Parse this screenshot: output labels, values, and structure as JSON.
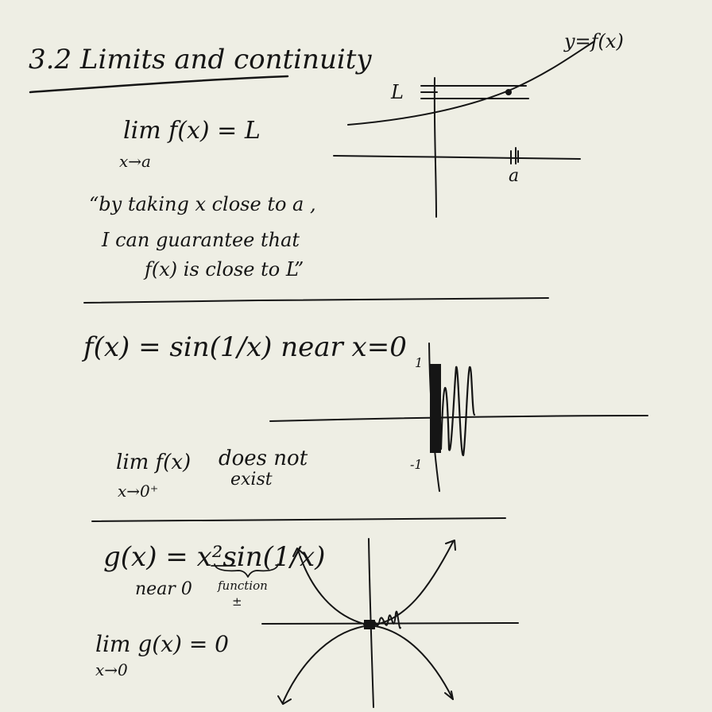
{
  "heading": {
    "title": "3.2 Limits and continuity"
  },
  "section1": {
    "limit_lhs": "lim f(x) = L",
    "limit_sub": "x→a",
    "quote_line1": "“by taking x close to a ,",
    "quote_line2": "I can guarantee that",
    "quote_line3": "f(x) is close to L”",
    "graph": {
      "curve_label": "y=f(x)",
      "y_label": "L",
      "x_label": "a"
    }
  },
  "section2": {
    "function_def": "f(x) = sin(1/x)  near x=0",
    "limit_lhs": "lim f(x)",
    "limit_sub": "x→0⁺",
    "conclusion_line1": "does not",
    "conclusion_line2": "exist",
    "graph": {
      "tick_top": "1",
      "tick_bottom": "-1"
    }
  },
  "section3": {
    "function_def": "g(x) = x²sin(1/x)",
    "near_label": "near 0",
    "brace_note_line1": "function",
    "brace_note_line2": "±",
    "limit_lhs": "lim g(x) = 0",
    "limit_sub": "x→0"
  }
}
